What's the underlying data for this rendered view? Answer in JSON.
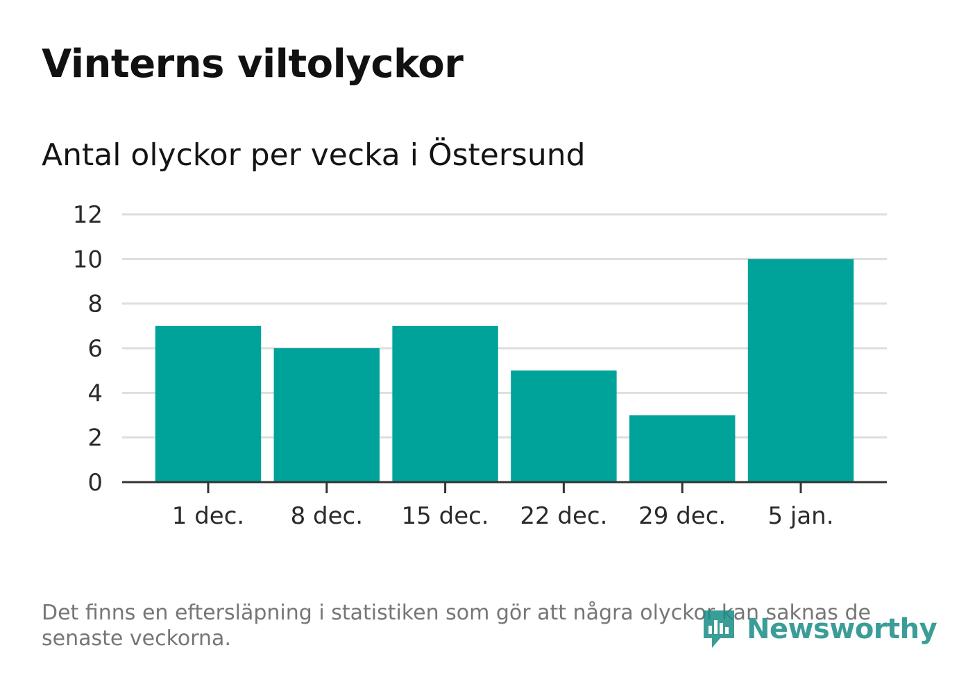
{
  "title": "Vinterns viltolyckor",
  "subtitle": "Antal olyckor per vecka i Östersund",
  "note": "Det finns en eftersläpning i statistiken som gör att några olyckor kan saknas de senaste veckorna.",
  "brand": {
    "name": "Newsworthy",
    "color": "#1a8d86",
    "icon": "chart-bubble-icon"
  },
  "colors": {
    "bar": "#00a39a",
    "grid": "#dedede",
    "axis": "#333333"
  },
  "chart_data": {
    "type": "bar",
    "categories": [
      "1 dec.",
      "8 dec.",
      "15 dec.",
      "22 dec.",
      "29 dec.",
      "5 jan."
    ],
    "values": [
      7,
      6,
      7,
      5,
      3,
      10
    ],
    "yticks": [
      "0",
      "2",
      "4",
      "6",
      "8",
      "10",
      "12"
    ],
    "ylim": [
      0,
      12
    ],
    "xlabel": "",
    "ylabel": "",
    "grid": true
  }
}
